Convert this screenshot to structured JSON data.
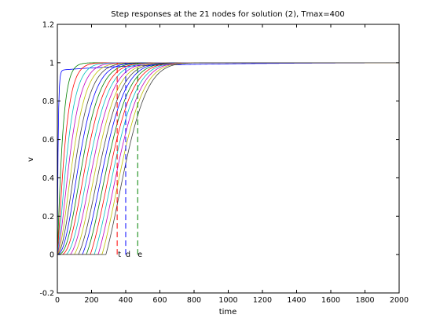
{
  "chart_data": {
    "type": "line",
    "title": "Step responses at the 21 nodes for solution (2), Tmax=400",
    "xlabel": "time",
    "ylabel": "v",
    "xlim": [
      0,
      2000
    ],
    "ylim": [
      -0.2,
      1.2
    ],
    "xticks": [
      "0",
      "200",
      "400",
      "600",
      "800",
      "1000",
      "1200",
      "1400",
      "1600",
      "1800",
      "2000"
    ],
    "yticks": [
      "-0.2",
      "0",
      "0.2",
      "0.4",
      "0.6",
      "0.8",
      "1",
      "1.2"
    ],
    "grid": false,
    "legend": "none",
    "series_description": "21 step-response curves, one per node; each rises from 0 toward 1",
    "series_count": 21,
    "series_colors": [
      "#0000ff",
      "#008000",
      "#ff0000",
      "#00bfbf",
      "#bf00bf",
      "#bfbf00",
      "#404040"
    ],
    "vertical_markers": [
      {
        "label": "t",
        "x": 350,
        "y_from": 0,
        "y_to": 1,
        "color": "#ff0000",
        "style": "dashed"
      },
      {
        "label": "d",
        "x": 400,
        "y_from": 0,
        "y_to": 1,
        "color": "#0000ff",
        "style": "dashed"
      },
      {
        "label": "e",
        "x": 470,
        "y_from": 0,
        "y_to": 1,
        "color": "#008000",
        "style": "dashed"
      }
    ]
  }
}
